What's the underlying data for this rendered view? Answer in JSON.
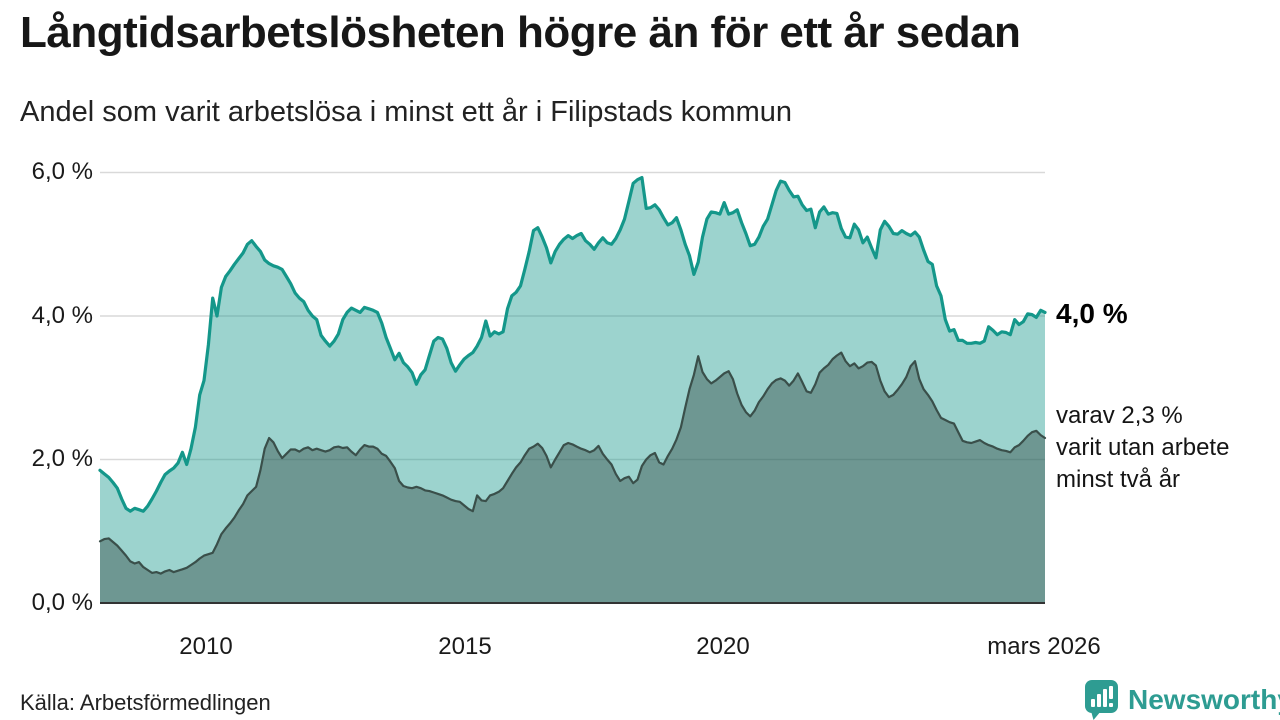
{
  "title": "Långtidsarbetslösheten högre än för ett år sedan",
  "subtitle": "Andel som varit arbetslösa i minst ett år i Filipstads kommun",
  "source": "Källa: Arbetsförmedlingen",
  "branding": {
    "name": "Newsworthy",
    "color": "#2e9c92"
  },
  "annotations": {
    "end_label_primary": "4,0 %",
    "secondary_lines": [
      "varav 2,3 %",
      "varit utan arbete",
      "minst två år"
    ]
  },
  "chart_data": {
    "type": "area",
    "title": "Långtidsarbetslösheten högre än för ett år sedan",
    "subtitle": "Andel som varit arbetslösa i minst ett år i Filipstads kommun",
    "frequency": "monthly",
    "x_domain": [
      "2008-01",
      "2026-03"
    ],
    "ylim": [
      0,
      6.2
    ],
    "grid": "horizontal",
    "y_gridlines_pct": [
      2,
      4,
      6
    ],
    "y_tick_labels": [
      "6,0 %",
      "4,0 %",
      "2,0 %",
      "0,0 %"
    ],
    "x_tick_labels": [
      "2010",
      "2015",
      "2020",
      "mars 2026"
    ],
    "axis_line_color": "#333333",
    "gridline_color": "#d9d9d9",
    "series": [
      {
        "name": "Andel arbetslösa minst ett år",
        "end_value_pct": 4.0,
        "line_color": "#14978a",
        "fill_color": "rgba(19,150,138,0.42)",
        "line_width": 3.2,
        "values": [
          1.85,
          1.8,
          1.75,
          1.68,
          1.6,
          1.45,
          1.32,
          1.28,
          1.32,
          1.3,
          1.28,
          1.35,
          1.45,
          1.56,
          1.68,
          1.79,
          1.84,
          1.88,
          1.95,
          2.1,
          1.93,
          2.15,
          2.45,
          2.9,
          3.1,
          3.6,
          4.25,
          4.0,
          4.4,
          4.55,
          4.63,
          4.72,
          4.8,
          4.88,
          5.0,
          5.05,
          4.97,
          4.9,
          4.78,
          4.73,
          4.7,
          4.68,
          4.65,
          4.55,
          4.45,
          4.32,
          4.25,
          4.2,
          4.08,
          4.0,
          3.95,
          3.73,
          3.65,
          3.58,
          3.65,
          3.75,
          3.95,
          4.05,
          4.11,
          4.08,
          4.05,
          4.12,
          4.1,
          4.08,
          4.05,
          3.9,
          3.7,
          3.55,
          3.39,
          3.48,
          3.35,
          3.29,
          3.21,
          3.05,
          3.18,
          3.25,
          3.45,
          3.65,
          3.7,
          3.68,
          3.55,
          3.35,
          3.23,
          3.32,
          3.4,
          3.45,
          3.49,
          3.58,
          3.7,
          3.93,
          3.72,
          3.78,
          3.75,
          3.78,
          4.1,
          4.28,
          4.33,
          4.42,
          4.65,
          4.9,
          5.19,
          5.23,
          5.1,
          4.95,
          4.74,
          4.9,
          5.0,
          5.07,
          5.12,
          5.08,
          5.12,
          5.15,
          5.05,
          5.0,
          4.93,
          5.02,
          5.09,
          5.02,
          5.0,
          5.08,
          5.2,
          5.35,
          5.6,
          5.85,
          5.9,
          5.93,
          5.5,
          5.51,
          5.55,
          5.48,
          5.37,
          5.27,
          5.3,
          5.37,
          5.2,
          5.0,
          4.84,
          4.58,
          4.75,
          5.1,
          5.35,
          5.45,
          5.44,
          5.42,
          5.58,
          5.42,
          5.44,
          5.48,
          5.3,
          5.15,
          4.98,
          5.0,
          5.1,
          5.25,
          5.35,
          5.55,
          5.75,
          5.88,
          5.86,
          5.75,
          5.66,
          5.67,
          5.55,
          5.47,
          5.49,
          5.23,
          5.45,
          5.52,
          5.42,
          5.44,
          5.43,
          5.22,
          5.1,
          5.09,
          5.28,
          5.2,
          5.02,
          5.1,
          4.95,
          4.81,
          5.2,
          5.32,
          5.25,
          5.15,
          5.14,
          5.19,
          5.15,
          5.12,
          5.17,
          5.1,
          4.92,
          4.76,
          4.72,
          4.42,
          4.28,
          3.95,
          3.79,
          3.81,
          3.66,
          3.66,
          3.62,
          3.62,
          3.63,
          3.62,
          3.65,
          3.85,
          3.8,
          3.74,
          3.78,
          3.77,
          3.74,
          3.95,
          3.88,
          3.92,
          4.03,
          4.02,
          3.98,
          4.08,
          4.05
        ]
      },
      {
        "name": "Andel arbetslösa minst två år",
        "end_value_pct": 2.3,
        "line_color": "#3a4f4a",
        "fill_color": "rgba(42,62,58,0.40)",
        "line_width": 2.2,
        "values": [
          0.86,
          0.89,
          0.9,
          0.85,
          0.8,
          0.73,
          0.66,
          0.58,
          0.55,
          0.57,
          0.5,
          0.46,
          0.42,
          0.43,
          0.41,
          0.44,
          0.46,
          0.43,
          0.45,
          0.47,
          0.49,
          0.53,
          0.57,
          0.62,
          0.66,
          0.68,
          0.7,
          0.82,
          0.96,
          1.04,
          1.11,
          1.19,
          1.29,
          1.38,
          1.5,
          1.56,
          1.62,
          1.85,
          2.15,
          2.3,
          2.24,
          2.12,
          2.02,
          2.08,
          2.14,
          2.14,
          2.11,
          2.15,
          2.17,
          2.13,
          2.15,
          2.13,
          2.11,
          2.13,
          2.17,
          2.18,
          2.16,
          2.17,
          2.11,
          2.06,
          2.14,
          2.2,
          2.18,
          2.18,
          2.15,
          2.08,
          2.05,
          1.97,
          1.88,
          1.7,
          1.63,
          1.61,
          1.6,
          1.62,
          1.6,
          1.57,
          1.56,
          1.54,
          1.52,
          1.5,
          1.47,
          1.44,
          1.42,
          1.41,
          1.36,
          1.31,
          1.28,
          1.5,
          1.43,
          1.42,
          1.5,
          1.52,
          1.55,
          1.6,
          1.7,
          1.8,
          1.89,
          1.96,
          2.06,
          2.15,
          2.18,
          2.22,
          2.16,
          2.05,
          1.89,
          2.0,
          2.1,
          2.2,
          2.23,
          2.21,
          2.18,
          2.15,
          2.13,
          2.1,
          2.13,
          2.19,
          2.08,
          2.0,
          1.93,
          1.8,
          1.7,
          1.74,
          1.76,
          1.67,
          1.72,
          1.91,
          2.0,
          2.06,
          2.09,
          1.96,
          1.93,
          2.05,
          2.15,
          2.28,
          2.45,
          2.72,
          2.98,
          3.18,
          3.44,
          3.22,
          3.12,
          3.06,
          3.1,
          3.15,
          3.2,
          3.23,
          3.12,
          2.92,
          2.76,
          2.66,
          2.6,
          2.68,
          2.8,
          2.88,
          2.98,
          3.06,
          3.11,
          3.13,
          3.1,
          3.03,
          3.1,
          3.2,
          3.08,
          2.95,
          2.93,
          3.05,
          3.21,
          3.27,
          3.32,
          3.4,
          3.45,
          3.49,
          3.37,
          3.3,
          3.34,
          3.27,
          3.3,
          3.35,
          3.36,
          3.31,
          3.1,
          2.95,
          2.87,
          2.9,
          2.97,
          3.05,
          3.15,
          3.3,
          3.37,
          3.12,
          2.98,
          2.9,
          2.81,
          2.69,
          2.58,
          2.55,
          2.52,
          2.5,
          2.38,
          2.26,
          2.24,
          2.23,
          2.25,
          2.27,
          2.23,
          2.2,
          2.18,
          2.15,
          2.13,
          2.12,
          2.1,
          2.17,
          2.2,
          2.26,
          2.33,
          2.38,
          2.4,
          2.34,
          2.3
        ]
      }
    ]
  }
}
